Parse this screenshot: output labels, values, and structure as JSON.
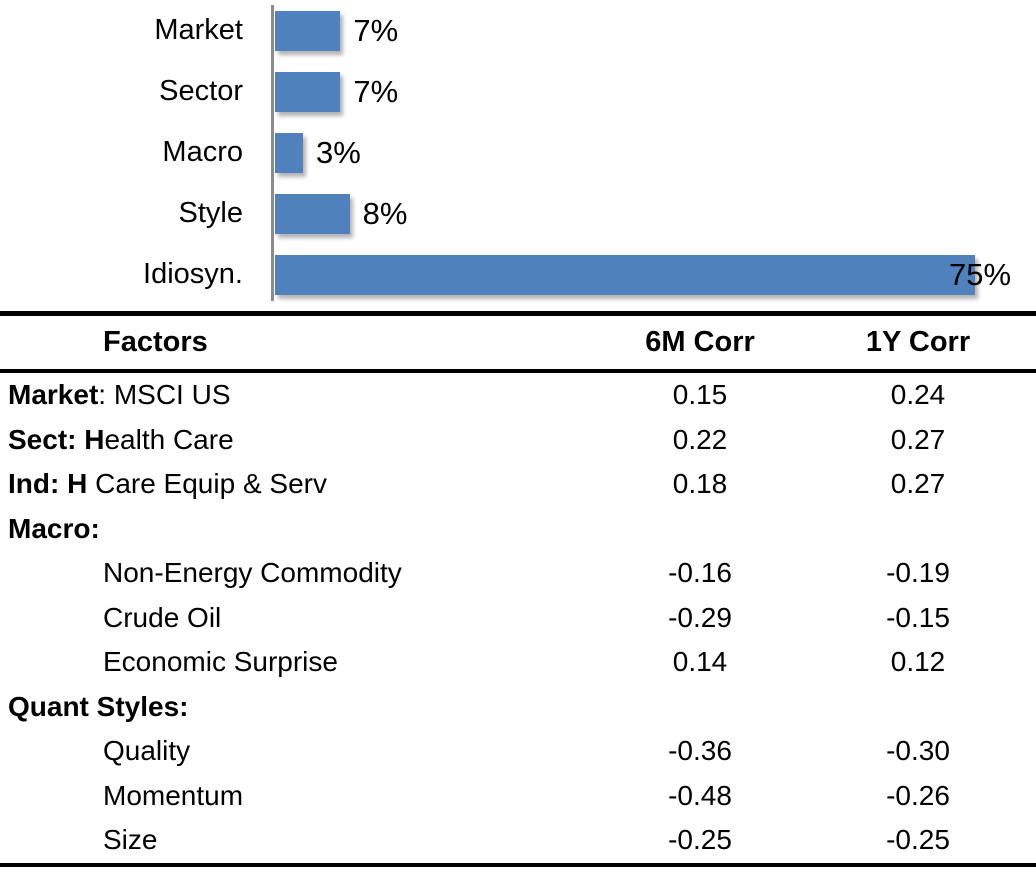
{
  "chart_data": [
    {
      "type": "bar",
      "orientation": "horizontal",
      "title": "",
      "xlabel": "",
      "ylabel": "",
      "categories": [
        "Market",
        "Sector",
        "Macro",
        "Style",
        "Idiosyn."
      ],
      "values": [
        7,
        7,
        3,
        8,
        75
      ],
      "value_labels": [
        "7%",
        "7%",
        "3%",
        "8%",
        "75%"
      ],
      "xlim": [
        0,
        75
      ],
      "grid": false,
      "legend": false,
      "bar_color": "#4F81BD",
      "axis_color": "#8C8C8C"
    },
    {
      "type": "table",
      "headers": [
        "Factors",
        "6M Corr",
        "1Y Corr"
      ],
      "rows": [
        {
          "label_segments": [
            {
              "text": "Market",
              "bold": true
            },
            {
              "text": ": MSCI US",
              "bold": false
            }
          ],
          "indent": false,
          "corr_6m": "0.15",
          "corr_1y": "0.24"
        },
        {
          "label_segments": [
            {
              "text": "Sect: H",
              "bold": true
            },
            {
              "text": "ealth Care",
              "bold": false
            }
          ],
          "indent": false,
          "corr_6m": "0.22",
          "corr_1y": "0.27"
        },
        {
          "label_segments": [
            {
              "text": "Ind: H",
              "bold": true
            },
            {
              "text": " Care Equip & Serv",
              "bold": false
            }
          ],
          "indent": false,
          "corr_6m": "0.18",
          "corr_1y": "0.27"
        },
        {
          "label_segments": [
            {
              "text": "Macro:",
              "bold": true
            }
          ],
          "indent": false,
          "corr_6m": "",
          "corr_1y": ""
        },
        {
          "label_segments": [
            {
              "text": "Non-Energy Commodity",
              "bold": false
            }
          ],
          "indent": true,
          "corr_6m": "-0.16",
          "corr_1y": "-0.19"
        },
        {
          "label_segments": [
            {
              "text": "Crude Oil",
              "bold": false
            }
          ],
          "indent": true,
          "corr_6m": "-0.29",
          "corr_1y": "-0.15"
        },
        {
          "label_segments": [
            {
              "text": "Economic Surprise",
              "bold": false
            }
          ],
          "indent": true,
          "corr_6m": "0.14",
          "corr_1y": "0.12"
        },
        {
          "label_segments": [
            {
              "text": "Quant Styles:",
              "bold": true
            }
          ],
          "indent": false,
          "corr_6m": "",
          "corr_1y": ""
        },
        {
          "label_segments": [
            {
              "text": "Quality",
              "bold": false
            }
          ],
          "indent": true,
          "corr_6m": "-0.36",
          "corr_1y": "-0.30"
        },
        {
          "label_segments": [
            {
              "text": "Momentum",
              "bold": false
            }
          ],
          "indent": true,
          "corr_6m": "-0.48",
          "corr_1y": "-0.26"
        },
        {
          "label_segments": [
            {
              "text": "Size",
              "bold": false
            }
          ],
          "indent": true,
          "corr_6m": "-0.25",
          "corr_1y": "-0.25"
        }
      ]
    }
  ]
}
